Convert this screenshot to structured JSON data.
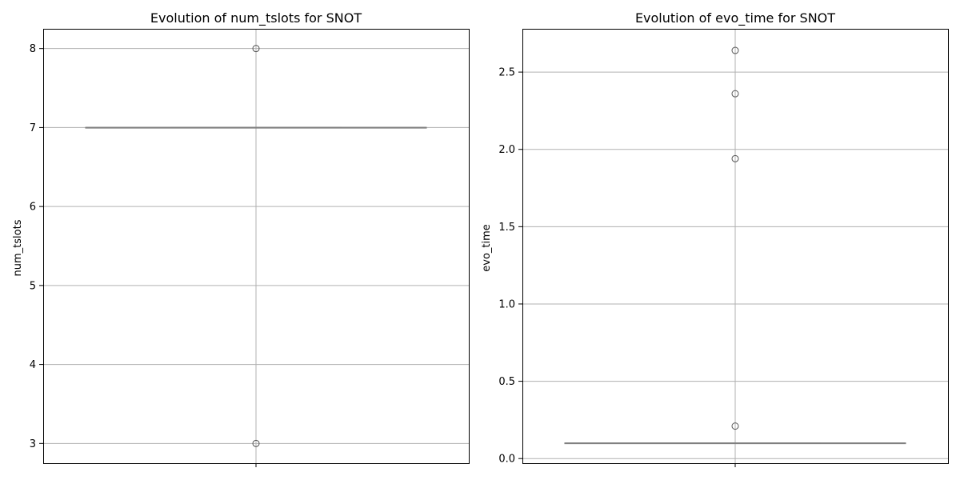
{
  "chart_data": [
    {
      "type": "box",
      "title": "Evolution of num_tslots for SNOT",
      "xlabel": "",
      "ylabel": "num_tslots",
      "ylim": [
        2.75,
        8.25
      ],
      "yticks": [
        3,
        4,
        5,
        6,
        7,
        8
      ],
      "grid": true,
      "box": {
        "q1": 7,
        "median": 7,
        "q3": 7,
        "whisker_low": 7,
        "whisker_high": 7
      },
      "outliers": [
        8,
        3
      ],
      "box_color": "#808080"
    },
    {
      "type": "box",
      "title": "Evolution of evo_time for SNOT",
      "xlabel": "",
      "ylabel": "evo_time",
      "ylim": [
        -0.03,
        2.78
      ],
      "yticks": [
        0.0,
        0.5,
        1.0,
        1.5,
        2.0,
        2.5
      ],
      "ytick_labels": [
        "0.0",
        "0.5",
        "1.0",
        "1.5",
        "2.0",
        "2.5"
      ],
      "grid": true,
      "box": {
        "q1": 0.1,
        "median": 0.1,
        "q3": 0.1,
        "whisker_low": 0.1,
        "whisker_high": 0.1
      },
      "outliers": [
        2.64,
        2.36,
        1.94,
        0.21
      ],
      "box_color": "#808080"
    }
  ]
}
